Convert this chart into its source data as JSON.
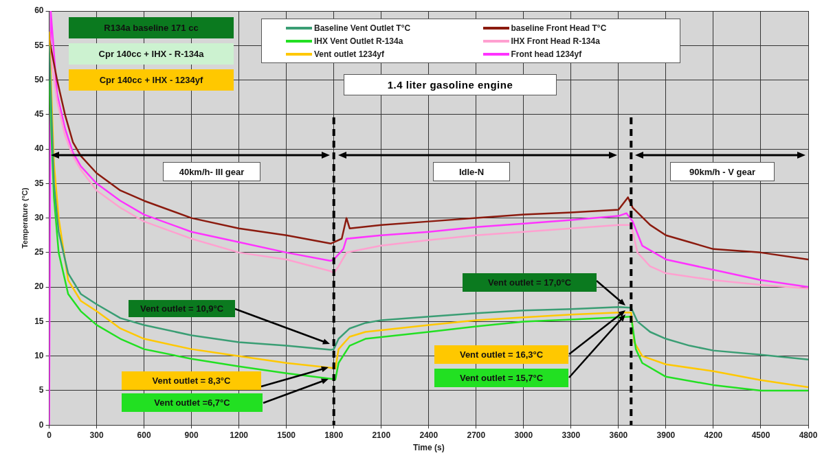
{
  "chart_data": {
    "type": "line",
    "title": "1.4 liter gasoline engine",
    "xlabel": "Time (s)",
    "ylabel": "Temperature (°C)",
    "xlim": [
      0,
      4800
    ],
    "xticks": [
      0,
      300,
      600,
      900,
      1200,
      1500,
      1800,
      2100,
      2400,
      2700,
      3000,
      3300,
      3600,
      3900,
      4200,
      4500,
      4800
    ],
    "ylim": [
      0,
      60
    ],
    "yticks": [
      0,
      5,
      10,
      15,
      20,
      25,
      30,
      35,
      40,
      45,
      50,
      55,
      60
    ],
    "grid": true,
    "legend": "top",
    "marker": "none",
    "line_style": "solid",
    "series": [
      {
        "name": "Baseline Vent Outlet T°C",
        "color": "#3a9e74",
        "x": [
          0,
          30,
          60,
          120,
          200,
          300,
          450,
          600,
          900,
          1200,
          1500,
          1780,
          1800,
          1830,
          1900,
          2000,
          2100,
          2400,
          2700,
          3000,
          3300,
          3600,
          3680,
          3720,
          3800,
          3900,
          4050,
          4200,
          4500,
          4800
        ],
        "values": [
          55,
          35,
          28,
          22,
          19,
          17.5,
          15.5,
          14.5,
          13,
          12,
          11.5,
          10.9,
          11,
          12.5,
          14,
          14.8,
          15.2,
          15.7,
          16.2,
          16.6,
          16.8,
          17.1,
          17,
          15,
          13.5,
          12.5,
          11.5,
          10.8,
          10.2,
          9.5
        ]
      },
      {
        "name": "IHX Vent Outlet R-134a",
        "color": "#22e022",
        "x": [
          0,
          30,
          60,
          120,
          200,
          300,
          450,
          600,
          900,
          1200,
          1500,
          1780,
          1810,
          1830,
          1900,
          2000,
          2400,
          2700,
          3000,
          3300,
          3600,
          3680,
          3710,
          3750,
          3900,
          4200,
          4500,
          4800
        ],
        "values": [
          50,
          33,
          25,
          19,
          16.5,
          14.5,
          12.5,
          11,
          9.6,
          8.5,
          7.5,
          6.7,
          6.6,
          9,
          11.5,
          12.5,
          13.5,
          14.3,
          15,
          15.3,
          15.6,
          15.7,
          11,
          9,
          7,
          5.8,
          5,
          5
        ]
      },
      {
        "name": "Vent outlet 1234yf",
        "color": "#ffc800",
        "x": [
          0,
          30,
          60,
          120,
          200,
          300,
          450,
          600,
          900,
          1200,
          1500,
          1780,
          1810,
          1830,
          1900,
          2000,
          2400,
          2700,
          3000,
          3300,
          3600,
          3680,
          3700,
          3750,
          3900,
          4200,
          4500,
          4800
        ],
        "values": [
          57,
          38,
          30,
          21,
          18,
          16.5,
          14,
          12.5,
          11,
          10,
          9,
          8.3,
          8.2,
          11,
          12.8,
          13.5,
          14.5,
          15.2,
          15.6,
          16,
          16.3,
          16.3,
          12,
          10,
          8.8,
          7.8,
          6.5,
          5.5
        ]
      },
      {
        "name": "baseline Front Head T°C",
        "color": "#8b1a0e",
        "x": [
          0,
          50,
          100,
          150,
          200,
          300,
          450,
          600,
          900,
          1200,
          1500,
          1780,
          1800,
          1850,
          1880,
          1900,
          2100,
          2400,
          2700,
          3000,
          3300,
          3600,
          3660,
          3690,
          3800,
          3900,
          4050,
          4200,
          4500,
          4800
        ],
        "values": [
          56,
          50,
          45,
          41,
          39,
          36.5,
          34,
          32.5,
          30,
          28.5,
          27.5,
          26.3,
          26.5,
          27,
          30,
          28.5,
          29,
          29.5,
          30,
          30.5,
          30.8,
          31.2,
          33,
          31.5,
          29,
          27.5,
          26.5,
          25.5,
          25,
          24
        ]
      },
      {
        "name": "IHX Front Head R-134a",
        "color": "#ffa0d0",
        "x": [
          0,
          50,
          100,
          150,
          200,
          300,
          450,
          600,
          900,
          1200,
          1500,
          1780,
          1800,
          1830,
          1880,
          2100,
          2400,
          2700,
          3000,
          3300,
          3600,
          3680,
          3720,
          3800,
          3900,
          4200,
          4500,
          4800
        ],
        "values": [
          55,
          47,
          42,
          39,
          37,
          34,
          31.5,
          29.5,
          27,
          25,
          24,
          22.3,
          22,
          23,
          25,
          26,
          26.8,
          27.5,
          28,
          28.5,
          29,
          29,
          25,
          23,
          22,
          21,
          20.3,
          19.8
        ]
      },
      {
        "name": "Front head 1234yf",
        "color": "#ff33ff",
        "x": [
          0,
          10,
          50,
          100,
          150,
          200,
          300,
          450,
          600,
          900,
          1200,
          1500,
          1780,
          1800,
          1860,
          1880,
          2100,
          2400,
          2700,
          3000,
          3300,
          3600,
          3650,
          3690,
          3750,
          3900,
          4200,
          4500,
          4800
        ],
        "values": [
          0,
          60,
          48,
          43,
          39.5,
          37.5,
          35,
          32.5,
          30.5,
          28,
          26.5,
          25,
          23.8,
          24,
          25.5,
          27,
          27.5,
          28,
          28.7,
          29.2,
          29.7,
          30.3,
          30.7,
          29.5,
          26,
          24,
          22.5,
          21,
          20
        ]
      }
    ],
    "ref_lines": [
      {
        "axis": "x",
        "value": 1800,
        "color": "#000000",
        "line_style": "dashed"
      },
      {
        "axis": "x",
        "value": 3680,
        "color": "#000000",
        "line_style": "dashed"
      }
    ],
    "annotations": [
      "R134a baseline 171 cc",
      "Cpr 140cc + IHX - R-134a",
      "Cpr 140cc + IHX - 1234yf",
      "40km/h- III gear",
      "Idle-N",
      "90km/h - V gear",
      "Vent outlet = 10,9°C",
      "Vent outlet = 8,3°C",
      "Vent outlet =6,7°C",
      "Vent outlet = 17,0°C",
      "Vent outlet = 16,3°C",
      "Vent outlet = 15,7°C"
    ]
  }
}
